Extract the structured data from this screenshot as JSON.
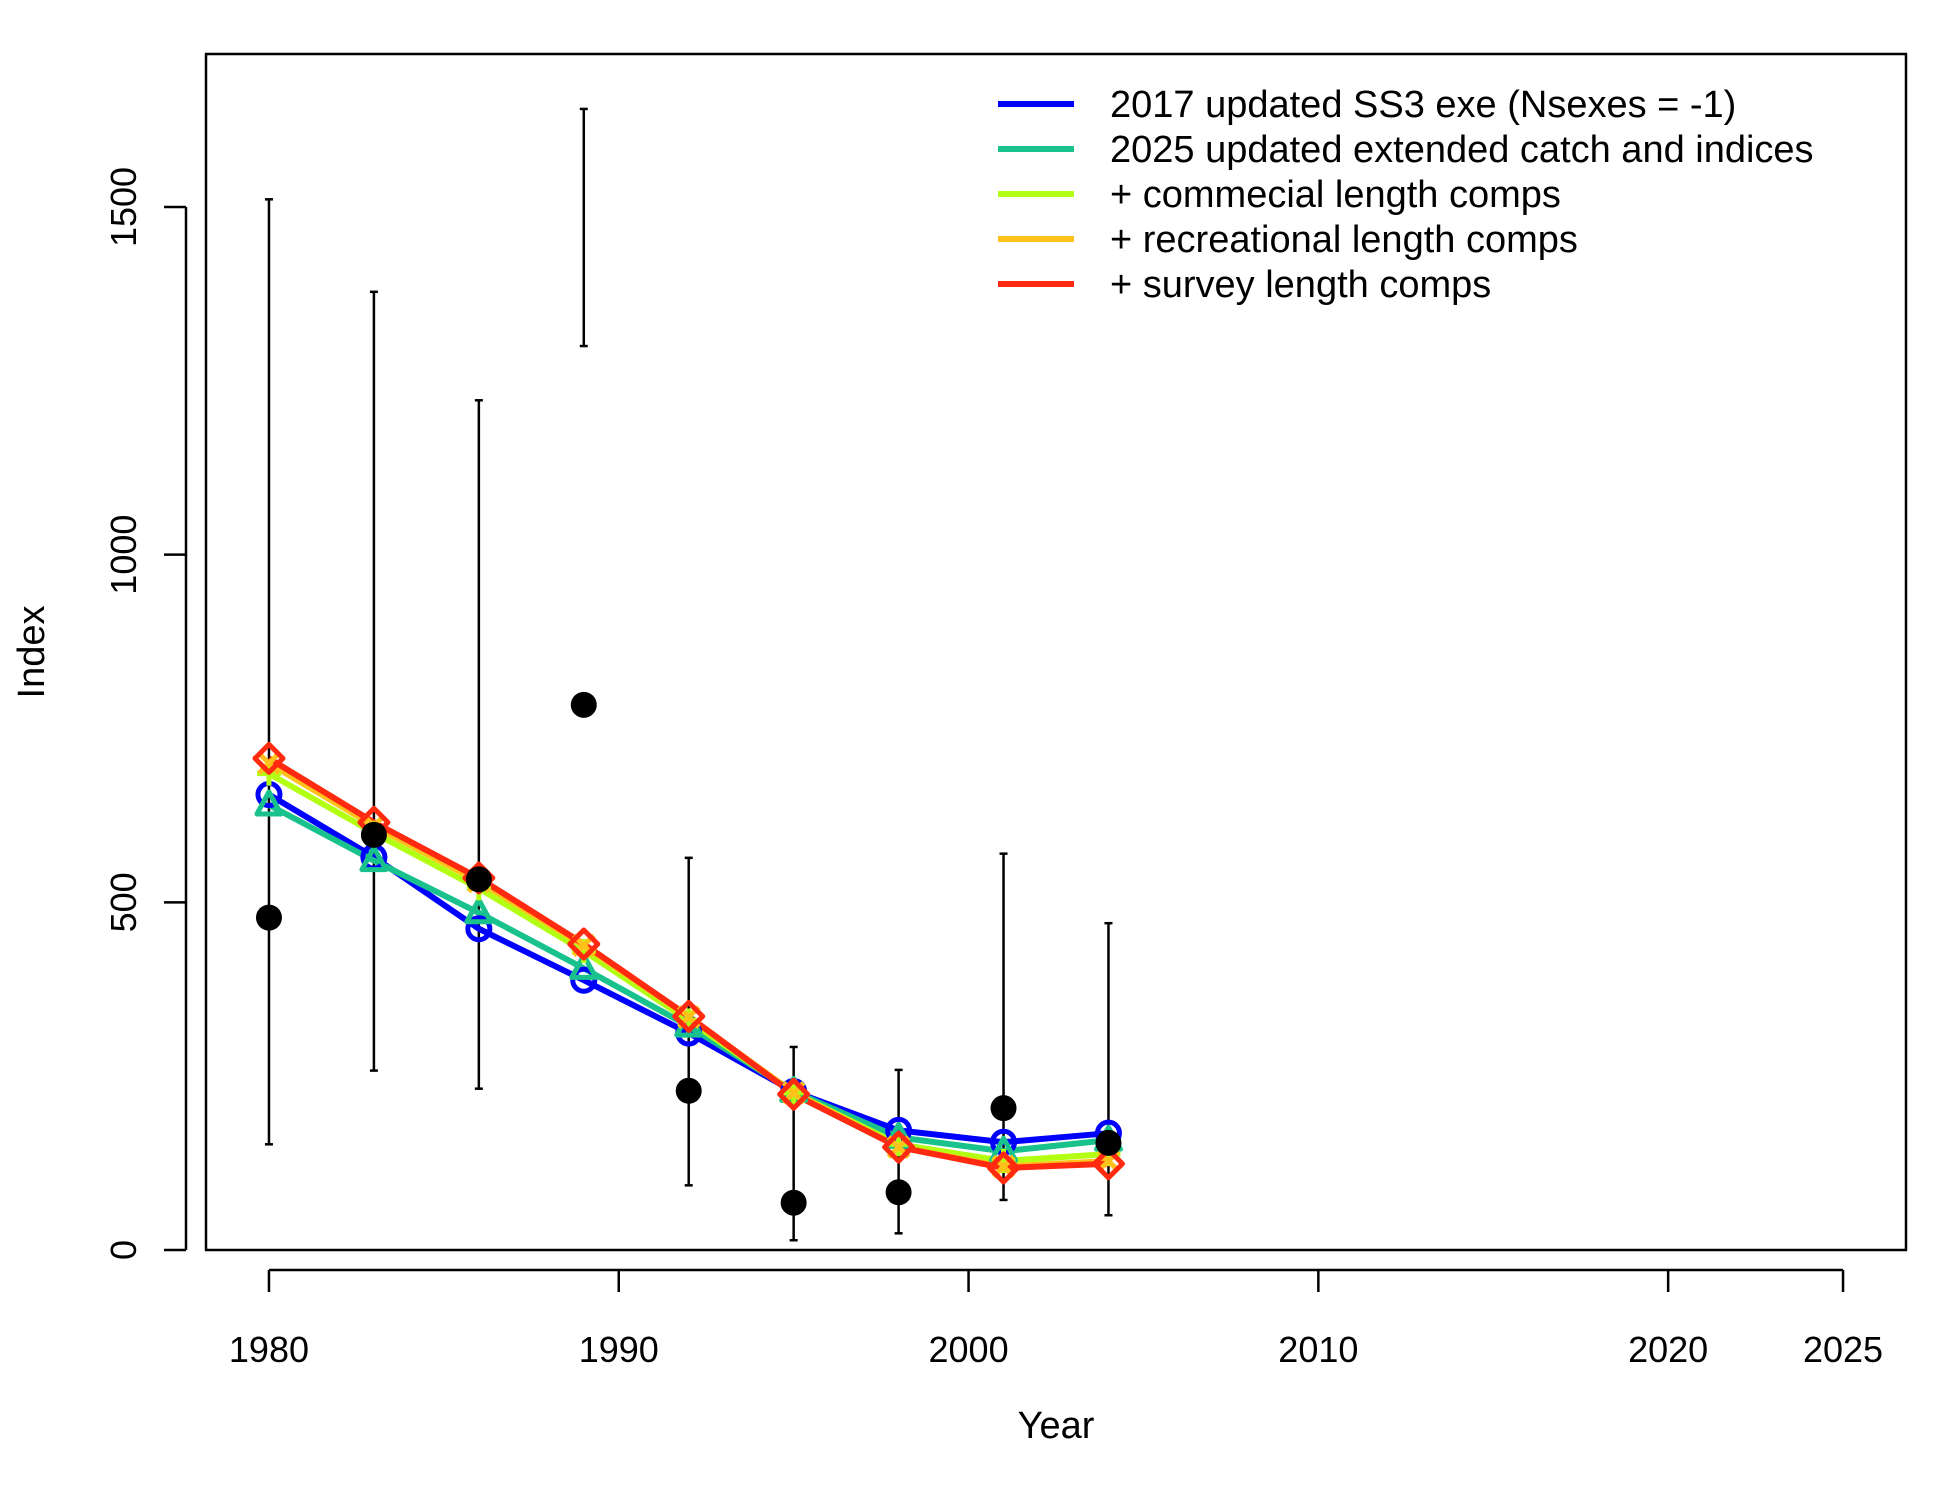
{
  "chart_data": {
    "type": "line",
    "xlabel": "Year",
    "ylabel": "Index",
    "xlim": [
      1978.2,
      2026.8
    ],
    "ylim": [
      0,
      1720
    ],
    "xticks": [
      1980,
      1990,
      2000,
      2010,
      2020,
      2025
    ],
    "yticks": [
      0,
      500,
      1000,
      1500
    ],
    "grid": false,
    "legend_position": "top-right",
    "observed": {
      "x": [
        1980,
        1983,
        1986,
        1989,
        1992,
        1995,
        1998,
        2001,
        2004
      ],
      "y": [
        478,
        597,
        533,
        784,
        229,
        68,
        83,
        204,
        154
      ],
      "lower": [
        152,
        258,
        232,
        1300,
        93,
        14,
        24,
        72,
        50
      ],
      "upper": [
        1511,
        1378,
        1222,
        1641,
        564,
        292,
        259,
        570,
        470
      ]
    },
    "x": [
      1980,
      1983,
      1986,
      1989,
      1992,
      1995,
      1998,
      2001,
      2004
    ],
    "series": [
      {
        "name": "2017 updated SS3 exe (Nsexes = -1)",
        "color": "#0000ff",
        "marker": "circle",
        "values": [
          655,
          565,
          462,
          388,
          312,
          228,
          172,
          155,
          168
        ]
      },
      {
        "name": "2025 updated extended catch and indices",
        "color": "#19c28c",
        "marker": "triangle",
        "values": [
          640,
          560,
          485,
          405,
          322,
          228,
          162,
          142,
          158
        ]
      },
      {
        "name": "+ commecial length comps",
        "color": "#b2ff14",
        "marker": "plus",
        "values": [
          685,
          600,
          520,
          430,
          330,
          226,
          152,
          128,
          138
        ]
      },
      {
        "name": "+ recreational length comps",
        "color": "#ffc21a",
        "marker": "x",
        "values": [
          700,
          610,
          530,
          438,
          335,
          226,
          148,
          120,
          128
        ]
      },
      {
        "name": "+ survey length comps",
        "color": "#ff2a10",
        "marker": "diamond",
        "values": [
          707,
          615,
          535,
          440,
          336,
          224,
          148,
          118,
          124
        ]
      }
    ]
  }
}
